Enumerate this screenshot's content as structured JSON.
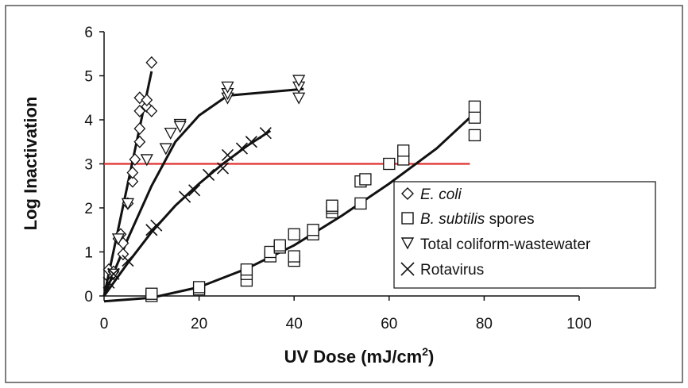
{
  "chart_data": {
    "type": "scatter",
    "xlabel": "UV Dose  (mJ/cm",
    "xlabel_sup": "2",
    "xlabel_close": ")",
    "ylabel": "Log Inactivation",
    "xlim": [
      0,
      100
    ],
    "ylim": [
      0,
      6
    ],
    "x_ticks": [
      "0",
      "20",
      "40",
      "60",
      "80",
      "100"
    ],
    "y_ticks": [
      "0",
      "1",
      "2",
      "3",
      "4",
      "5",
      "6"
    ],
    "grid": false,
    "legend_position": "lower-right",
    "reference_line": {
      "y": 3,
      "x_range": [
        0,
        77
      ],
      "color": "#e03131"
    },
    "series": [
      {
        "name_italic": "E. coli",
        "name_rest": "",
        "marker": "diamond",
        "points": [
          [
            1,
            0.6
          ],
          [
            2,
            0.55
          ],
          [
            3,
            1.3
          ],
          [
            3.5,
            1.4
          ],
          [
            4,
            1.2
          ],
          [
            4,
            0.95
          ],
          [
            5,
            2.1
          ],
          [
            6,
            2.6
          ],
          [
            6,
            2.8
          ],
          [
            6.5,
            3.1
          ],
          [
            7.5,
            3.5
          ],
          [
            7.5,
            3.8
          ],
          [
            7.5,
            4.2
          ],
          [
            7.5,
            4.5
          ],
          [
            9,
            4.3
          ],
          [
            9,
            4.45
          ],
          [
            10,
            4.2
          ],
          [
            10,
            5.3
          ]
        ],
        "fit": [
          [
            0,
            0
          ],
          [
            10,
            5.1
          ]
        ]
      },
      {
        "name_italic": "B. subtilis",
        "name_rest": " spores",
        "marker": "square",
        "points": [
          [
            10,
            0.0
          ],
          [
            10,
            0.05
          ],
          [
            20,
            0.15
          ],
          [
            20,
            0.2
          ],
          [
            30,
            0.35
          ],
          [
            30,
            0.5
          ],
          [
            30,
            0.6
          ],
          [
            35,
            0.9
          ],
          [
            35,
            1.0
          ],
          [
            37,
            1.1
          ],
          [
            37,
            1.15
          ],
          [
            40,
            0.8
          ],
          [
            40,
            0.9
          ],
          [
            40,
            1.4
          ],
          [
            44,
            1.4
          ],
          [
            44,
            1.5
          ],
          [
            48,
            1.9
          ],
          [
            48,
            2.0
          ],
          [
            48,
            2.05
          ],
          [
            54,
            2.1
          ],
          [
            54,
            2.6
          ],
          [
            55,
            2.65
          ],
          [
            60,
            3.0
          ],
          [
            63,
            3.1
          ],
          [
            63,
            3.3
          ],
          [
            78,
            3.65
          ],
          [
            78,
            4.05
          ],
          [
            78,
            4.3
          ]
        ],
        "fit": [
          [
            0,
            -0.12
          ],
          [
            10,
            -0.04
          ],
          [
            20,
            0.2
          ],
          [
            30,
            0.62
          ],
          [
            40,
            1.15
          ],
          [
            50,
            1.82
          ],
          [
            60,
            2.55
          ],
          [
            70,
            3.35
          ],
          [
            78,
            4.15
          ]
        ]
      },
      {
        "name_italic": "",
        "name_rest": "Total coliform-wastewater",
        "marker": "triangle-down",
        "points": [
          [
            2,
            0.5
          ],
          [
            3,
            1.3
          ],
          [
            5,
            2.1
          ],
          [
            9,
            3.1
          ],
          [
            13,
            3.35
          ],
          [
            14,
            3.7
          ],
          [
            16,
            3.9
          ],
          [
            16,
            3.85
          ],
          [
            26,
            4.5
          ],
          [
            26,
            4.6
          ],
          [
            26,
            4.75
          ],
          [
            41,
            4.5
          ],
          [
            41,
            4.75
          ],
          [
            41,
            4.9
          ]
        ],
        "fit": [
          [
            0,
            0
          ],
          [
            5,
            1.3
          ],
          [
            10,
            2.5
          ],
          [
            15,
            3.5
          ],
          [
            20,
            4.1
          ],
          [
            26,
            4.55
          ],
          [
            42,
            4.7
          ]
        ]
      },
      {
        "name_italic": "",
        "name_rest": "Rotavirus",
        "marker": "x",
        "points": [
          [
            1,
            0.3
          ],
          [
            2,
            0.5
          ],
          [
            5,
            0.8
          ],
          [
            10,
            1.5
          ],
          [
            11,
            1.6
          ],
          [
            17,
            2.25
          ],
          [
            19,
            2.4
          ],
          [
            22,
            2.75
          ],
          [
            25,
            2.9
          ],
          [
            26,
            3.2
          ],
          [
            29,
            3.35
          ],
          [
            31,
            3.5
          ],
          [
            34,
            3.7
          ]
        ],
        "fit": [
          [
            0,
            0
          ],
          [
            5,
            0.75
          ],
          [
            10,
            1.45
          ],
          [
            15,
            2.05
          ],
          [
            20,
            2.55
          ],
          [
            25,
            3.0
          ],
          [
            30,
            3.4
          ],
          [
            35,
            3.75
          ]
        ]
      }
    ]
  }
}
